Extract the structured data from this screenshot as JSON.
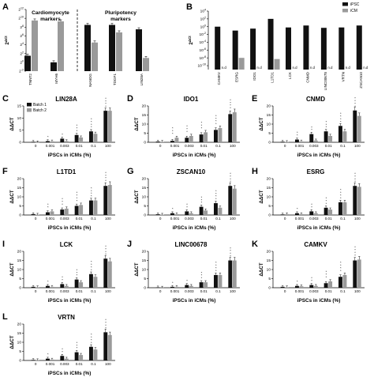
{
  "colors": {
    "dark": "#111111",
    "light": "#9a9a9a"
  },
  "chart_data": [
    {
      "id": "A",
      "type": "bar",
      "ylabel": "2^ΔCt",
      "log_base": 2,
      "ylim_exp": [
        -2,
        12
      ],
      "yticks": [
        "2^12",
        "2^10",
        "2^8",
        "2^6",
        "2^4",
        "2^2",
        "2^0",
        "2^-2"
      ],
      "groups": [
        "Cardiomyocyte markers",
        "Pluripotency markers"
      ],
      "categories": [
        "TNNT2",
        "MYH6",
        "NANOG",
        "TDGF1",
        "LIN28A"
      ],
      "series": [
        {
          "name": "iPSC",
          "values": [
            1.5,
            0,
            8.5,
            8.5,
            7.5
          ]
        },
        {
          "name": "iCM",
          "values": [
            9.5,
            9.3,
            4.5,
            6.8,
            1
          ]
        }
      ]
    },
    {
      "id": "B",
      "type": "bar",
      "ylabel": "2^ΔCt",
      "log_base": 10,
      "ylim_exp": [
        -11,
        4
      ],
      "yticks": [
        "10^4",
        "10^2",
        "10^0",
        "10^-2",
        "10^-4",
        "10^-6",
        "10^-8",
        "10^-10"
      ],
      "categories": [
        "CAMKV",
        "ESRG",
        "IDO1",
        "L1TD1",
        "LCK",
        "CNMD",
        "LINC00678",
        "VRTN",
        "ZSCAN10"
      ],
      "series": [
        {
          "name": "iPSC",
          "values": [
            0,
            -1,
            -0.5,
            2,
            -0.2,
            0.3,
            -0.3,
            -0.2,
            0.3
          ]
        },
        {
          "name": "iCM",
          "values": [
            null,
            -8,
            null,
            -8.3,
            null,
            null,
            null,
            null,
            null
          ]
        }
      ],
      "nd_label": "n.d"
    },
    {
      "id": "C",
      "title": "LIN28A",
      "type": "bar",
      "xlabel": "iPSCs in iCMs (%)",
      "ylabel": "ΔΔCT",
      "ylim": [
        0,
        15
      ],
      "yticks": [
        0,
        5,
        10,
        15
      ],
      "categories": [
        "0",
        "0.001",
        "0.003",
        "0.01",
        "0.1",
        "100"
      ],
      "series": [
        {
          "name": "Batch 1",
          "values": [
            0.2,
            0.5,
            1.5,
            3,
            4.5,
            13
          ]
        },
        {
          "name": "Batch 2",
          "values": [
            0,
            0.4,
            0.5,
            2,
            3.5,
            13
          ]
        }
      ],
      "stars": [
        0,
        1,
        1,
        3,
        4,
        4
      ]
    },
    {
      "id": "D",
      "title": "IDO1",
      "type": "bar",
      "xlabel": "iPSCs in iCMs (%)",
      "ylabel": "ΔΔCT",
      "ylim": [
        0,
        20
      ],
      "yticks": [
        0,
        5,
        10,
        15,
        20
      ],
      "categories": [
        "0",
        "0.001",
        "0.003",
        "0.01",
        "0.1",
        "100"
      ],
      "series": [
        {
          "name": "Batch 1",
          "values": [
            0.4,
            0.8,
            2.5,
            4.3,
            6.8,
            15.5
          ]
        },
        {
          "name": "Batch 2",
          "values": [
            0.3,
            2.5,
            3.5,
            5.5,
            7.8,
            16.5
          ]
        }
      ],
      "stars": [
        0,
        3,
        3,
        3,
        4,
        4
      ]
    },
    {
      "id": "E",
      "title": "CNMD",
      "type": "bar",
      "xlabel": "iPSCs in iCMs (%)",
      "ylabel": "ΔΔCT",
      "ylim": [
        0,
        20
      ],
      "yticks": [
        0,
        5,
        10,
        15,
        20
      ],
      "categories": [
        "0",
        "0.001",
        "0.003",
        "0.01",
        "0.1",
        "100"
      ],
      "series": [
        {
          "name": "Batch 1",
          "values": [
            0.3,
            1.5,
            4.5,
            6,
            9,
            17.5
          ]
        },
        {
          "name": "Batch 2",
          "values": [
            0.2,
            0.5,
            1,
            3.5,
            6,
            14.5
          ]
        }
      ],
      "stars": [
        0,
        2,
        2,
        3,
        4,
        4
      ]
    },
    {
      "id": "F",
      "title": "L1TD1",
      "type": "bar",
      "xlabel": "iPSCs in iCMs (%)",
      "ylabel": "ΔΔCT",
      "ylim": [
        0,
        20
      ],
      "yticks": [
        0,
        5,
        10,
        15,
        20
      ],
      "categories": [
        "0",
        "0.001",
        "0.003",
        "0.01",
        "0.1",
        "100"
      ],
      "series": [
        {
          "name": "Batch 1",
          "values": [
            0.5,
            1.5,
            3,
            5,
            8,
            16
          ]
        },
        {
          "name": "Batch 2",
          "values": [
            0.2,
            2,
            3.5,
            5.5,
            8,
            16.5
          ]
        }
      ],
      "stars": [
        0,
        2,
        3,
        4,
        4,
        4
      ]
    },
    {
      "id": "G",
      "title": "ZSCAN10",
      "type": "bar",
      "xlabel": "iPSCs in iCMs (%)",
      "ylabel": "ΔΔCT",
      "ylim": [
        0,
        20
      ],
      "yticks": [
        0,
        5,
        10,
        15,
        20
      ],
      "categories": [
        "0",
        "0.001",
        "0.003",
        "0.01",
        "0.1",
        "100"
      ],
      "series": [
        {
          "name": "Batch 1",
          "values": [
            0.4,
            1,
            2,
            4.5,
            6.5,
            16
          ]
        },
        {
          "name": "Batch 2",
          "values": [
            0.2,
            0.5,
            1,
            2.5,
            4,
            14.5
          ]
        }
      ],
      "stars": [
        0,
        1,
        2,
        3,
        4,
        4
      ]
    },
    {
      "id": "H",
      "title": "ESRG",
      "type": "bar",
      "xlabel": "iPSCs in iCMs (%)",
      "ylabel": "ΔΔCT",
      "ylim": [
        0,
        20
      ],
      "yticks": [
        0,
        5,
        10,
        15,
        20
      ],
      "categories": [
        "0",
        "0.001",
        "0.003",
        "0.01",
        "0.1",
        "100"
      ],
      "series": [
        {
          "name": "Batch 1",
          "values": [
            0.3,
            1,
            2,
            4,
            7,
            16
          ]
        },
        {
          "name": "Batch 2",
          "values": [
            0.5,
            0.5,
            1,
            3,
            7,
            15.5
          ]
        }
      ],
      "stars": [
        0,
        1,
        2,
        3,
        4,
        4
      ]
    },
    {
      "id": "I",
      "title": "LCK",
      "type": "bar",
      "xlabel": "iPSCs in iCMs (%)",
      "ylabel": "ΔΔCT",
      "ylim": [
        0,
        20
      ],
      "yticks": [
        0,
        5,
        10,
        15,
        20
      ],
      "categories": [
        "0",
        "0.001",
        "0.003",
        "0.01",
        "0.1",
        "100"
      ],
      "series": [
        {
          "name": "Batch 1",
          "values": [
            0.5,
            1,
            2,
            4.5,
            7.5,
            16
          ]
        },
        {
          "name": "Batch 2",
          "values": [
            0.3,
            0.5,
            1,
            3,
            6,
            14.5
          ]
        }
      ],
      "stars": [
        0,
        1,
        2,
        3,
        4,
        4
      ]
    },
    {
      "id": "J",
      "title": "LINC00678",
      "type": "bar",
      "xlabel": "iPSCs in iCMs (%)",
      "ylabel": "ΔΔCT",
      "ylim": [
        0,
        20
      ],
      "yticks": [
        0,
        5,
        10,
        15,
        20
      ],
      "categories": [
        "0",
        "0.001",
        "0.003",
        "0.01",
        "0.1",
        "100"
      ],
      "series": [
        {
          "name": "Batch 1",
          "values": [
            0.2,
            0.5,
            1.5,
            3,
            7,
            15
          ]
        },
        {
          "name": "Batch 2",
          "values": [
            0.1,
            0.5,
            1,
            3,
            7,
            15
          ]
        }
      ],
      "stars": [
        0,
        1,
        1,
        3,
        4,
        4
      ]
    },
    {
      "id": "K",
      "title": "CAMKV",
      "type": "bar",
      "xlabel": "iPSCs in iCMs (%)",
      "ylabel": "ΔΔCT",
      "ylim": [
        0,
        20
      ],
      "yticks": [
        0,
        5,
        10,
        15,
        20
      ],
      "categories": [
        "0",
        "0.001",
        "0.003",
        "0.01",
        "0.1",
        "100"
      ],
      "series": [
        {
          "name": "Batch 1",
          "values": [
            0.5,
            1,
            1.5,
            2.5,
            6,
            15
          ]
        },
        {
          "name": "Batch 2",
          "values": [
            0.3,
            0.8,
            1,
            3.5,
            7,
            15.5
          ]
        }
      ],
      "stars": [
        0,
        1,
        2,
        3,
        4,
        4
      ]
    },
    {
      "id": "L",
      "title": "VRTN",
      "type": "bar",
      "xlabel": "iPSCs in iCMs (%)",
      "ylabel": "ΔΔCT",
      "ylim": [
        0,
        20
      ],
      "yticks": [
        0,
        5,
        10,
        15,
        20
      ],
      "categories": [
        "0",
        "0.001",
        "0.003",
        "0.01",
        "0.1",
        "100"
      ],
      "series": [
        {
          "name": "Batch 1",
          "values": [
            0.3,
            1,
            2.5,
            4.5,
            7.5,
            15.5
          ]
        },
        {
          "name": "Batch 2",
          "values": [
            0.2,
            0.5,
            1,
            3,
            6,
            14
          ]
        }
      ],
      "stars": [
        0,
        1,
        2,
        3,
        4,
        4
      ]
    }
  ]
}
